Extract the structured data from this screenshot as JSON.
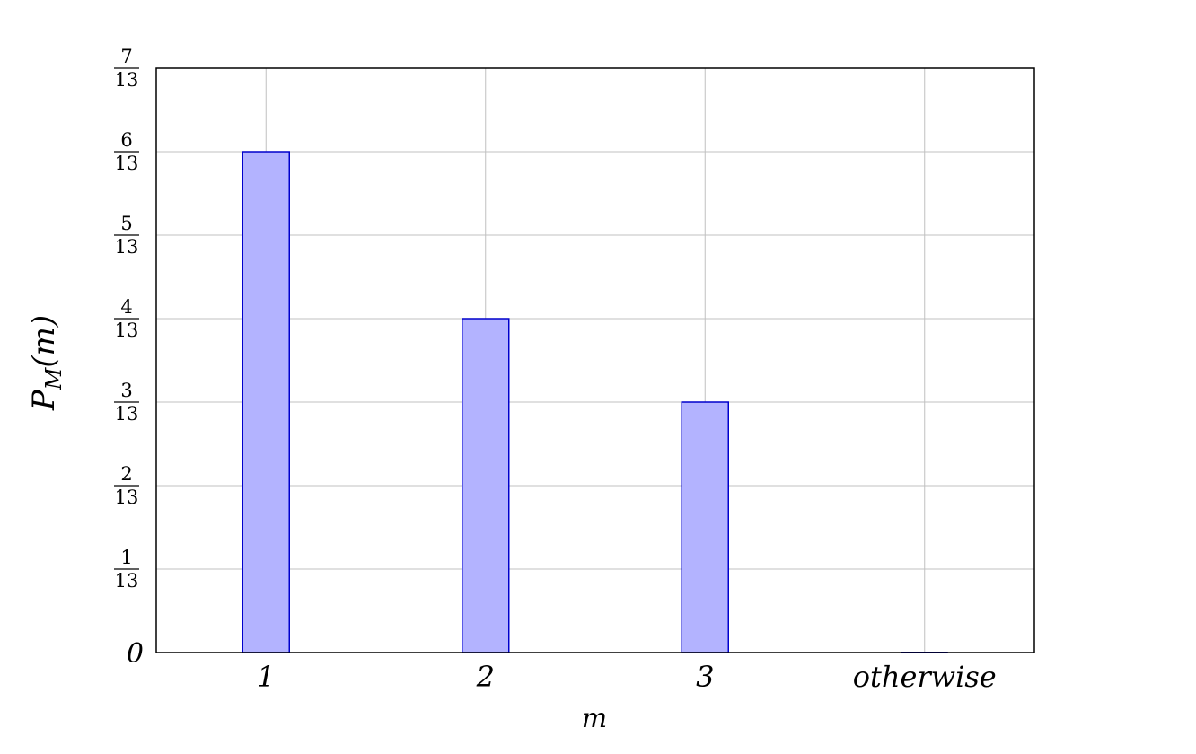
{
  "chart_data": {
    "type": "bar",
    "categories": [
      "1",
      "2",
      "3",
      "otherwise"
    ],
    "values": [
      0.461538,
      0.307692,
      0.230769,
      0
    ],
    "xlabel": "m",
    "ylabel": {
      "main": "P",
      "sub": "M",
      "arg": "(m)"
    },
    "ylim": [
      0,
      0.538462
    ],
    "yticks": [
      {
        "value": 0,
        "num": "",
        "den": "",
        "label": "0"
      },
      {
        "value": 0.076923,
        "num": "1",
        "den": "13",
        "label": ""
      },
      {
        "value": 0.153846,
        "num": "2",
        "den": "13",
        "label": ""
      },
      {
        "value": 0.230769,
        "num": "3",
        "den": "13",
        "label": ""
      },
      {
        "value": 0.307692,
        "num": "4",
        "den": "13",
        "label": ""
      },
      {
        "value": 0.384615,
        "num": "5",
        "den": "13",
        "label": ""
      },
      {
        "value": 0.461538,
        "num": "6",
        "den": "13",
        "label": ""
      },
      {
        "value": 0.538462,
        "num": "7",
        "den": "13",
        "label": ""
      }
    ],
    "grid": true,
    "colors": {
      "bar_fill": "#b3b3ff",
      "bar_stroke": "#0000cc",
      "grid": "#c0c0c0",
      "axis": "#000000"
    }
  }
}
